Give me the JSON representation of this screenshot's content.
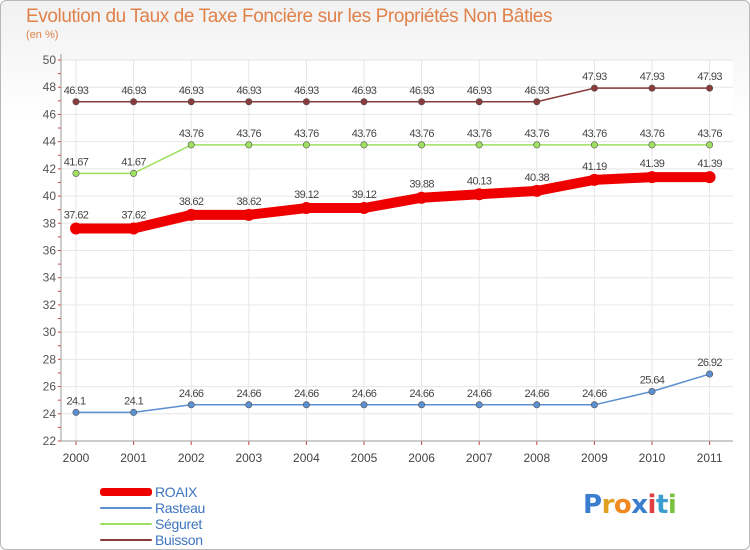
{
  "chart_data": {
    "type": "line",
    "title": "Evolution du Taux de Taxe Foncière sur les Propriétés Non Bâties",
    "subtitle": "(en %)",
    "x": [
      "2000",
      "2001",
      "2002",
      "2003",
      "2004",
      "2005",
      "2006",
      "2007",
      "2008",
      "2009",
      "2010",
      "2011"
    ],
    "ylim": [
      22,
      50
    ],
    "yticks": [
      22,
      24,
      26,
      28,
      30,
      32,
      34,
      36,
      38,
      40,
      42,
      44,
      46,
      48,
      50
    ],
    "grid": true,
    "legend_position": "bottom-left",
    "series": [
      {
        "name": "ROAIX",
        "color": "#ee0000",
        "values": [
          37.62,
          37.62,
          38.62,
          38.62,
          39.12,
          39.12,
          39.88,
          40.13,
          40.38,
          41.19,
          41.39,
          41.39
        ],
        "labels": [
          "37.62",
          "37.62",
          "38.62",
          "38.62",
          "39.12",
          "39.12",
          "39.88",
          "40.13",
          "40.38",
          "41.19",
          "41.39",
          "41.39"
        ]
      },
      {
        "name": "Rasteau",
        "color": "#5b8fd0",
        "values": [
          24.1,
          24.1,
          24.66,
          24.66,
          24.66,
          24.66,
          24.66,
          24.66,
          24.66,
          24.66,
          25.64,
          26.92
        ],
        "labels": [
          "24.1",
          "24.1",
          "24.66",
          "24.66",
          "24.66",
          "24.66",
          "24.66",
          "24.66",
          "24.66",
          "24.66",
          "25.64",
          "26.92"
        ]
      },
      {
        "name": "Séguret",
        "color": "#9ee05f",
        "values": [
          41.67,
          41.67,
          43.76,
          43.76,
          43.76,
          43.76,
          43.76,
          43.76,
          43.76,
          43.76,
          43.76,
          43.76
        ],
        "labels": [
          "41.67",
          "41.67",
          "43.76",
          "43.76",
          "43.76",
          "43.76",
          "43.76",
          "43.76",
          "43.76",
          "43.76",
          "43.76",
          "43.76"
        ]
      },
      {
        "name": "Buisson",
        "color": "#8a3c3c",
        "values": [
          46.93,
          46.93,
          46.93,
          46.93,
          46.93,
          46.93,
          46.93,
          46.93,
          46.93,
          47.93,
          47.93,
          47.93
        ],
        "labels": [
          "46.93",
          "46.93",
          "46.93",
          "46.93",
          "46.93",
          "46.93",
          "46.93",
          "46.93",
          "46.93",
          "47.93",
          "47.93",
          "47.93"
        ]
      }
    ]
  },
  "logo": {
    "letters": [
      "P",
      "r",
      "o",
      "x",
      "i",
      "t",
      "i"
    ]
  }
}
